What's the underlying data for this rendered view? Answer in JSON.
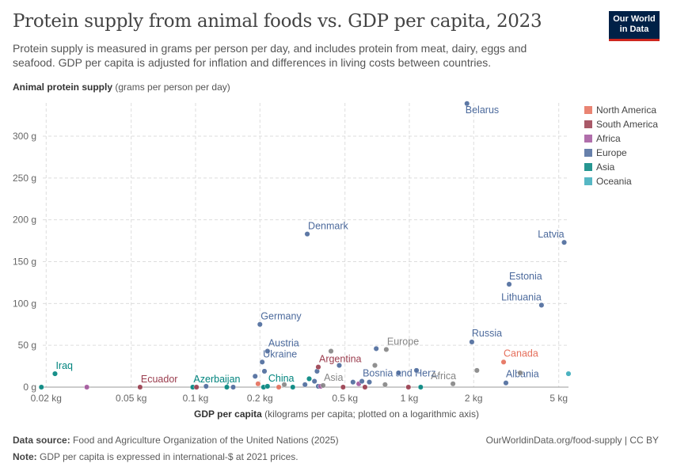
{
  "header": {
    "title": "Protein supply from animal foods vs. GDP per capita, 2023",
    "subtitle": "Protein supply is measured in grams per person per day, and includes protein from meat, dairy, eggs and seafood. GDP per capita is adjusted for inflation and differences in living costs between countries.",
    "logo": "Our World in Data"
  },
  "footer": {
    "source_label": "Data source:",
    "source": "Food and Agriculture Organization of the United Nations (2025)",
    "note_label": "Note:",
    "note": "GDP per capita is expressed in international-$ at 2021 prices.",
    "url": "OurWorldinData.org/food-supply | CC BY"
  },
  "chart_data": {
    "type": "scatter",
    "ylabel_bold": "Animal protein supply",
    "ylabel_rest": "(grams per person per day)",
    "xlabel_bold": "GDP per capita",
    "xlabel_rest": "(kilograms per capita; plotted on a logarithmic axis)",
    "x_scale": "log",
    "xlim": [
      0.018,
      5.6
    ],
    "ylim": [
      0,
      340
    ],
    "x_ticks": [
      {
        "v": 0.02,
        "l": "0.02 kg"
      },
      {
        "v": 0.05,
        "l": "0.05 kg"
      },
      {
        "v": 0.1,
        "l": "0.1 kg"
      },
      {
        "v": 0.2,
        "l": "0.2 kg"
      },
      {
        "v": 0.5,
        "l": "0.5 kg"
      },
      {
        "v": 1,
        "l": "1 kg"
      },
      {
        "v": 2,
        "l": "2 kg"
      },
      {
        "v": 5,
        "l": "5 kg"
      }
    ],
    "y_ticks": [
      {
        "v": 0,
        "l": "0 g"
      },
      {
        "v": 50,
        "l": "50 g"
      },
      {
        "v": 100,
        "l": "100 g"
      },
      {
        "v": 150,
        "l": "150 g"
      },
      {
        "v": 200,
        "l": "200 g"
      },
      {
        "v": 250,
        "l": "250 g"
      },
      {
        "v": 300,
        "l": "300 g"
      }
    ],
    "grid": true,
    "legend_position": "right",
    "legend": [
      {
        "name": "North America",
        "color": "#e56e5a"
      },
      {
        "name": "South America",
        "color": "#9a3c4d"
      },
      {
        "name": "Africa",
        "color": "#a2559c"
      },
      {
        "name": "Europe",
        "color": "#4c6a9c"
      },
      {
        "name": "Asia",
        "color": "#00847e"
      },
      {
        "name": "Oceania",
        "color": "#38aaba"
      }
    ],
    "aggregate_color": "#858585",
    "points": [
      {
        "x": 0.019,
        "y": 0,
        "g": "Asia"
      },
      {
        "x": 0.022,
        "y": 16,
        "g": "Asia",
        "label": "Iraq"
      },
      {
        "x": 0.031,
        "y": 0,
        "g": "Africa"
      },
      {
        "x": 0.055,
        "y": 0,
        "g": "South America",
        "label": "Ecuador"
      },
      {
        "x": 0.097,
        "y": 0,
        "g": "Asia",
        "label": "Azerbaijan"
      },
      {
        "x": 0.101,
        "y": 0,
        "g": "South America"
      },
      {
        "x": 0.112,
        "y": 1,
        "g": "Europe"
      },
      {
        "x": 0.14,
        "y": 0,
        "g": "Asia"
      },
      {
        "x": 0.15,
        "y": 0,
        "g": "Europe"
      },
      {
        "x": 0.19,
        "y": 13,
        "g": "Europe"
      },
      {
        "x": 0.196,
        "y": 4,
        "g": "North America"
      },
      {
        "x": 0.2,
        "y": 75,
        "g": "Europe",
        "label": "Germany"
      },
      {
        "x": 0.205,
        "y": 30,
        "g": "Europe",
        "label": "Ukraine"
      },
      {
        "x": 0.21,
        "y": 19,
        "g": "Europe"
      },
      {
        "x": 0.208,
        "y": 0,
        "g": "Asia"
      },
      {
        "x": 0.217,
        "y": 1,
        "g": "Asia",
        "label": "China"
      },
      {
        "x": 0.217,
        "y": 43,
        "g": "Europe",
        "label": "Austria"
      },
      {
        "x": 0.245,
        "y": 0,
        "g": "North America"
      },
      {
        "x": 0.26,
        "y": 3,
        "g": "aggregate"
      },
      {
        "x": 0.285,
        "y": 0,
        "g": "Asia"
      },
      {
        "x": 0.325,
        "y": 3,
        "g": "Europe"
      },
      {
        "x": 0.333,
        "y": 183,
        "g": "Europe",
        "label": "Denmark"
      },
      {
        "x": 0.34,
        "y": 10,
        "g": "Asia"
      },
      {
        "x": 0.36,
        "y": 7,
        "g": "Europe"
      },
      {
        "x": 0.37,
        "y": 19,
        "g": "Europe"
      },
      {
        "x": 0.375,
        "y": 24,
        "g": "South America",
        "label": "Argentina"
      },
      {
        "x": 0.375,
        "y": 1,
        "g": "Europe"
      },
      {
        "x": 0.385,
        "y": 1,
        "g": "Africa"
      },
      {
        "x": 0.395,
        "y": 2,
        "g": "aggregate",
        "label": "Asia"
      },
      {
        "x": 0.43,
        "y": 43,
        "g": "aggregate"
      },
      {
        "x": 0.47,
        "y": 26,
        "g": "Europe"
      },
      {
        "x": 0.49,
        "y": 0,
        "g": "South America"
      },
      {
        "x": 0.545,
        "y": 6,
        "g": "Europe"
      },
      {
        "x": 0.58,
        "y": 4,
        "g": "Africa"
      },
      {
        "x": 0.6,
        "y": 7,
        "g": "Europe",
        "label": "Bosnia and Herz."
      },
      {
        "x": 0.62,
        "y": 0,
        "g": "South America"
      },
      {
        "x": 0.65,
        "y": 6,
        "g": "Europe"
      },
      {
        "x": 0.69,
        "y": 26,
        "g": "aggregate"
      },
      {
        "x": 0.7,
        "y": 46,
        "g": "Europe"
      },
      {
        "x": 0.78,
        "y": 45,
        "g": "aggregate",
        "label": "Europe"
      },
      {
        "x": 0.77,
        "y": 3,
        "g": "aggregate"
      },
      {
        "x": 0.89,
        "y": 17,
        "g": "Europe"
      },
      {
        "x": 0.99,
        "y": 0,
        "g": "South America"
      },
      {
        "x": 1.08,
        "y": 20,
        "g": "Europe"
      },
      {
        "x": 1.13,
        "y": 0,
        "g": "Asia"
      },
      {
        "x": 1.6,
        "y": 4,
        "g": "aggregate",
        "label": "Africa"
      },
      {
        "x": 1.86,
        "y": 339,
        "g": "Europe",
        "label": "Belarus"
      },
      {
        "x": 1.96,
        "y": 54,
        "g": "Europe",
        "label": "Russia"
      },
      {
        "x": 2.07,
        "y": 20,
        "g": "aggregate"
      },
      {
        "x": 2.76,
        "y": 30,
        "g": "North America",
        "label": "Canada"
      },
      {
        "x": 2.83,
        "y": 5,
        "g": "Europe",
        "label": "Albania"
      },
      {
        "x": 2.93,
        "y": 123,
        "g": "Europe",
        "label": "Estonia"
      },
      {
        "x": 3.3,
        "y": 17,
        "g": "aggregate"
      },
      {
        "x": 4.15,
        "y": 98,
        "g": "Europe",
        "label": "Lithuania"
      },
      {
        "x": 5.3,
        "y": 173,
        "g": "Europe",
        "label": "Latvia"
      },
      {
        "x": 5.55,
        "y": 16,
        "g": "Oceania"
      }
    ]
  }
}
